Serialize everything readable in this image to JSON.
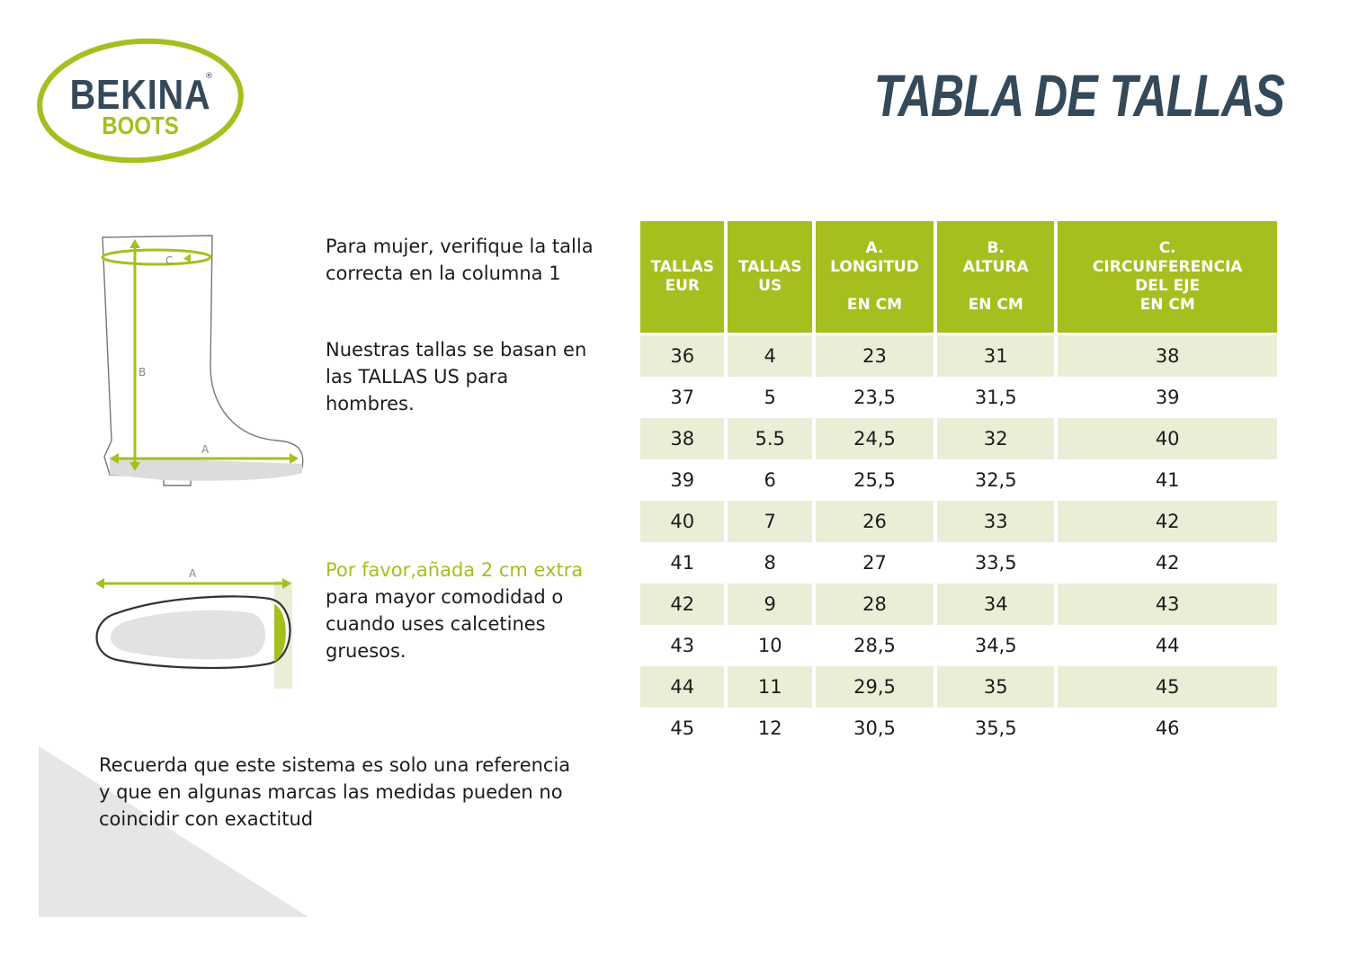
{
  "brand": {
    "line1": "BEKINA",
    "line2": "BOOTS",
    "registered": "®"
  },
  "page_title": "TABLA DE TALLAS",
  "boot_diagram": {
    "label_a": "A",
    "label_b": "B",
    "label_c": "C"
  },
  "foot_diagram": {
    "label_a": "A"
  },
  "notes": {
    "women": "Para mujer, verifique la talla correcta en la columna 1",
    "us_sizes": "Nuestras tallas se basan en las TALLAS US para hombres.",
    "extra_highlight": "Por favor,añada 2 cm extra",
    "extra_rest": " para mayor comodidad o cuando uses calcetines gruesos."
  },
  "footer_note": "Recuerda que este sistema es solo una referencia y que en algunas marcas las medidas pueden no coincidir con exactitud",
  "table": {
    "headers": [
      {
        "line1": "TALLAS",
        "line2": "EUR"
      },
      {
        "line1": "TALLAS",
        "line2": "US"
      },
      {
        "line1": "A.",
        "line2": "LONGITUD",
        "line3": "EN CM"
      },
      {
        "line1": "B.",
        "line2": "ALTURA",
        "line3": "EN CM"
      },
      {
        "line1": "C.",
        "line2": "CIRCUNFERENCIA",
        "line3": "DEL EJE",
        "line4": "EN CM"
      }
    ],
    "rows": [
      [
        "36",
        "4",
        "23",
        "31",
        "38"
      ],
      [
        "37",
        "5",
        "23,5",
        "31,5",
        "39"
      ],
      [
        "38",
        "5.5",
        "24,5",
        "32",
        "40"
      ],
      [
        "39",
        "6",
        "25,5",
        "32,5",
        "41"
      ],
      [
        "40",
        "7",
        "26",
        "33",
        "42"
      ],
      [
        "41",
        "8",
        "27",
        "33,5",
        "42"
      ],
      [
        "42",
        "9",
        "28",
        "34",
        "43"
      ],
      [
        "43",
        "10",
        "28,5",
        "34,5",
        "44"
      ],
      [
        "44",
        "11",
        "29,5",
        "35",
        "45"
      ],
      [
        "45",
        "12",
        "30,5",
        "35,5",
        "46"
      ]
    ]
  },
  "colors": {
    "accent": "#a7be1f",
    "dark": "#34495a",
    "row_shade": "#e9efd7"
  }
}
